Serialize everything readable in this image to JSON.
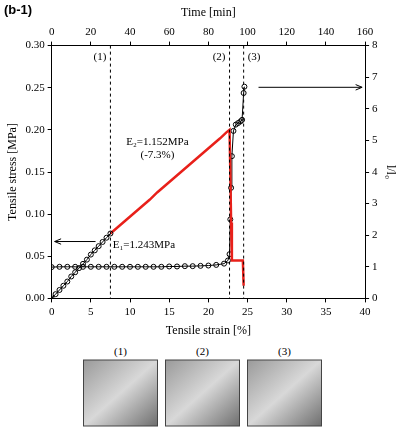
{
  "panel_label": "(b-1)",
  "chart_data": {
    "type": "line",
    "xlabel": "Tensile strain [%]",
    "ylabel": "Tensile stress [MPa]",
    "y2label": "l/l₀",
    "x2label": "Time [min]",
    "xlim": [
      0,
      40
    ],
    "xticks": [
      0,
      5,
      10,
      15,
      20,
      25,
      30,
      35,
      40
    ],
    "x2lim": [
      0,
      160
    ],
    "x2ticks": [
      0,
      20,
      40,
      60,
      80,
      100,
      120,
      140,
      160
    ],
    "ylim": [
      0,
      0.3
    ],
    "yticks": [
      {
        "value": 0,
        "label": "0.00"
      },
      {
        "value": 0.05,
        "label": "0.05"
      },
      {
        "value": 0.1,
        "label": "0.10"
      },
      {
        "value": 0.15,
        "label": "0.15"
      },
      {
        "value": 0.2,
        "label": "0.20"
      },
      {
        "value": 0.25,
        "label": "0.25"
      },
      {
        "value": 0.3,
        "label": "0.30"
      }
    ],
    "y2lim": [
      0,
      8
    ],
    "y2ticks": [
      0,
      1,
      2,
      3,
      4,
      5,
      6,
      7,
      8
    ],
    "grid": false,
    "series": [
      {
        "color": "#000000",
        "marker": "circle",
        "line_style": "solid",
        "axis": "y",
        "x": [
          0,
          0.5,
          1,
          1.5,
          2,
          2.5,
          3,
          3.5,
          4,
          4.5,
          5,
          5.5,
          6,
          6.5,
          7,
          7.5
        ],
        "values": [
          0,
          0.005,
          0.01,
          0.015,
          0.02,
          0.026,
          0.031,
          0.036,
          0.041,
          0.046,
          0.052,
          0.057,
          0.062,
          0.067,
          0.072,
          0.077
        ]
      },
      {
        "color": "#e8201a",
        "marker": "none",
        "line_style": "solid",
        "axis": "y",
        "x": [
          7.5,
          8.5,
          9.5,
          10.5,
          11.5,
          12.5,
          13.5,
          14.5,
          15.5,
          16.5,
          17.5,
          18.5,
          19.5,
          20.5,
          21.5,
          22.3,
          22.7,
          22.8,
          22.9,
          23.0,
          24.4,
          24.5
        ],
        "values": [
          0.077,
          0.085,
          0.093,
          0.101,
          0.109,
          0.117,
          0.126,
          0.134,
          0.142,
          0.15,
          0.158,
          0.166,
          0.174,
          0.182,
          0.19,
          0.197,
          0.2,
          0.15,
          0.09,
          0.045,
          0.045,
          0.015
        ]
      },
      {
        "color": "#000000",
        "marker": "circle",
        "line_style": "solid",
        "axis": "y2",
        "x": [
          0,
          1,
          2,
          3,
          4,
          5,
          6,
          7,
          8,
          9,
          10,
          11,
          12,
          13,
          14,
          15,
          16,
          17,
          18,
          19,
          20,
          21,
          22,
          22.5,
          22.7,
          22.8,
          22.9,
          23.0,
          23.2,
          23.5,
          23.8,
          24.1,
          24.3,
          24.5,
          24.6
        ],
        "values": [
          0.99,
          1,
          1,
          1,
          1,
          1,
          1,
          1,
          1,
          1,
          1,
          1,
          1,
          1,
          1,
          1.01,
          1.01,
          1.02,
          1.02,
          1.03,
          1.04,
          1.06,
          1.1,
          1.2,
          1.4,
          2.5,
          3.5,
          4.5,
          5.3,
          5.5,
          5.55,
          5.6,
          5.65,
          6.5,
          6.7
        ]
      }
    ],
    "vlines": [
      {
        "x": 7.5,
        "label": "(1)",
        "line_style": "dashed"
      },
      {
        "x": 22.7,
        "label": "(2)",
        "line_style": "dashed"
      },
      {
        "x": 24.5,
        "label": "(3)",
        "line_style": "dashed"
      }
    ],
    "annotations": [
      {
        "text": [
          "E₁=1.243MPa"
        ],
        "x": 7.8,
        "y": 0.063
      },
      {
        "text": [
          "E₂=1.152MPa",
          "(-7.3%)"
        ],
        "x": 13.5,
        "y": 0.185
      }
    ]
  },
  "photos": {
    "labels": [
      "(1)",
      "(2)",
      "(3)"
    ]
  }
}
